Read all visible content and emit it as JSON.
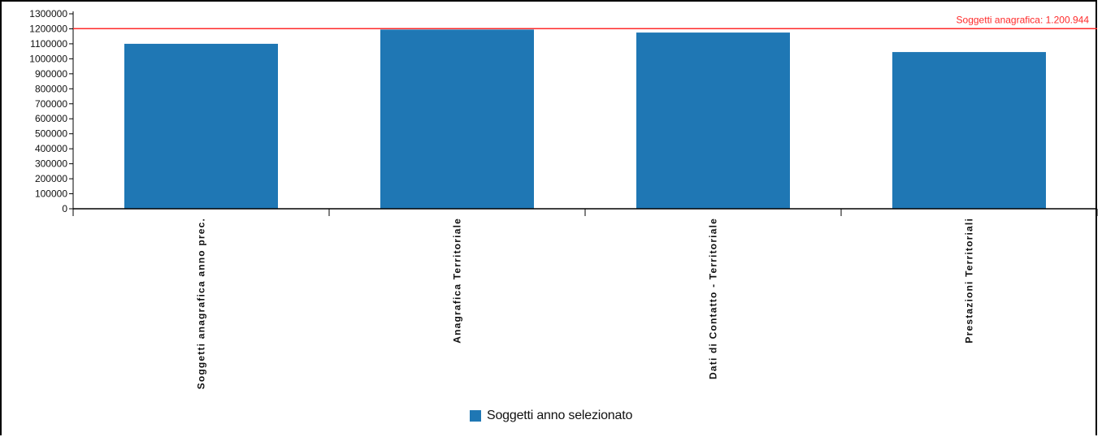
{
  "colors": {
    "bar": "#1f77b4",
    "reference_line": "#ff2a2a",
    "axis": "#000000",
    "text": "#111111"
  },
  "chart_data": {
    "type": "bar",
    "categories": [
      "Soggetti anagrafica anno prec.",
      "Anagrafica Territoriale",
      "Dati di Contatto - Territoriale",
      "Prestazioni Territoriali"
    ],
    "series": [
      {
        "name": "Soggetti anno selezionato",
        "values": [
          1100000,
          1195000,
          1175000,
          1045000
        ]
      }
    ],
    "ylim": [
      0,
      1300000
    ],
    "yticks": [
      "0",
      "100000",
      "200000",
      "300000",
      "400000",
      "500000",
      "600000",
      "700000",
      "800000",
      "900000",
      "1000000",
      "1100000",
      "1200000",
      "1300000"
    ],
    "reference_line": {
      "value": 1200944,
      "label": "Soggetti anagrafica: 1.200.944"
    },
    "legend": {
      "position": "bottom-center"
    },
    "grid": false
  }
}
